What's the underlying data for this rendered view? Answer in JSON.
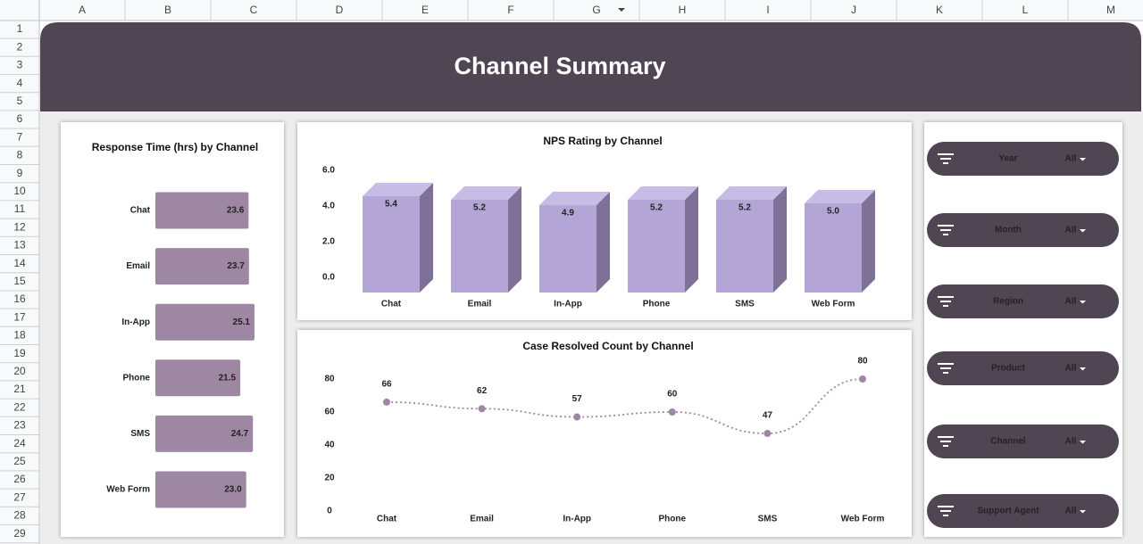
{
  "sheet": {
    "columns": [
      "A",
      "B",
      "C",
      "D",
      "E",
      "F",
      "G",
      "H",
      "I",
      "J",
      "K",
      "L",
      "M"
    ],
    "rows": [
      "1",
      "2",
      "3",
      "4",
      "5",
      "6",
      "7",
      "8",
      "9",
      "10",
      "11",
      "12",
      "13",
      "14",
      "15",
      "16",
      "17",
      "18",
      "19",
      "20",
      "21",
      "22",
      "23",
      "24",
      "25",
      "26",
      "27",
      "28",
      "29"
    ]
  },
  "header": {
    "title": "Channel Summary"
  },
  "chart_data": [
    {
      "type": "bar",
      "orientation": "horizontal",
      "title": "Response Time (hrs) by Channel",
      "categories": [
        "Chat",
        "Email",
        "In-App",
        "Phone",
        "SMS",
        "Web Form"
      ],
      "values": [
        23.6,
        23.7,
        25.1,
        21.5,
        24.7,
        23.0
      ],
      "value_labels": [
        "23.6",
        "23.7",
        "25.1",
        "21.5",
        "24.7",
        "23.0"
      ],
      "color": "#9e87a3"
    },
    {
      "type": "bar3d",
      "title": "NPS Rating by Channel",
      "categories": [
        "Chat",
        "Email",
        "In-App",
        "Phone",
        "SMS",
        "Web Form"
      ],
      "values": [
        5.4,
        5.2,
        4.9,
        5.2,
        5.2,
        5.0
      ],
      "value_labels": [
        "5.4",
        "5.2",
        "4.9",
        "5.2",
        "5.2",
        "5.0"
      ],
      "ylim": [
        0,
        6
      ],
      "yticks": [
        {
          "value": 0,
          "label": "0.0"
        },
        {
          "value": 2,
          "label": "2.0"
        },
        {
          "value": 4,
          "label": "4.0"
        },
        {
          "value": 6,
          "label": "6.0"
        }
      ],
      "color": "#b3a6d6"
    },
    {
      "type": "line",
      "title": "Case Resolved Count by Channel",
      "categories": [
        "Chat",
        "Email",
        "In-App",
        "Phone",
        "SMS",
        "Web Form"
      ],
      "values": [
        66,
        62,
        57,
        60,
        47,
        80
      ],
      "ylim": [
        0,
        80
      ],
      "yticks": [
        0,
        20,
        40,
        60,
        80
      ],
      "color": "#9e87a3"
    }
  ],
  "filters": [
    {
      "label": "Year",
      "value": "All"
    },
    {
      "label": "Month",
      "value": "All"
    },
    {
      "label": "Region",
      "value": "All"
    },
    {
      "label": "Product",
      "value": "All"
    },
    {
      "label": "Channel",
      "value": "All"
    },
    {
      "label": "Support Agent",
      "value": "All"
    }
  ]
}
